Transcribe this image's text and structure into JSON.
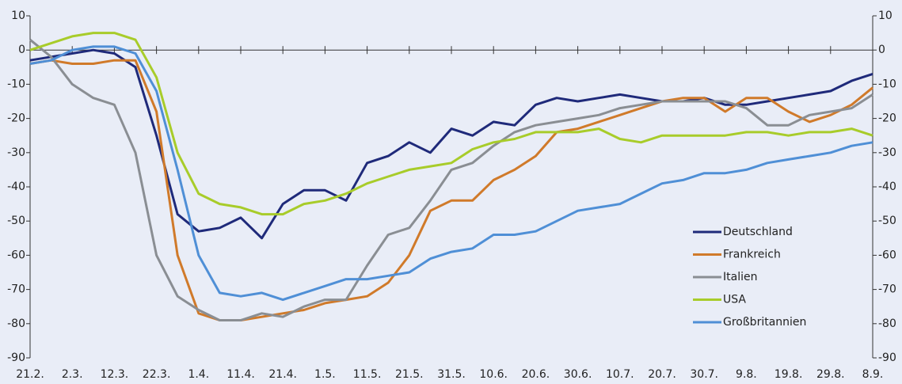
{
  "chart_data": {
    "type": "line",
    "categories": [
      "21.2.",
      null,
      "2.3.",
      null,
      "12.3.",
      null,
      "22.3.",
      null,
      "1.4.",
      null,
      "11.4.",
      null,
      "21.4.",
      null,
      "1.5.",
      null,
      "11.5.",
      null,
      "21.5.",
      null,
      "31.5.",
      null,
      "10.6.",
      null,
      "20.6.",
      null,
      "30.6.",
      null,
      "10.7.",
      null,
      "20.7.",
      null,
      "30.7.",
      null,
      "9.8.",
      null,
      "19.8.",
      null,
      "29.8.",
      null,
      "8.9."
    ],
    "ylim": [
      -90,
      10
    ],
    "yticks": [
      -90,
      -80,
      -70,
      -60,
      -50,
      -40,
      -30,
      -20,
      -10,
      0,
      10
    ],
    "y2lim": [
      -90,
      10
    ],
    "y2ticks": [
      -90,
      -80,
      -70,
      -60,
      -50,
      -40,
      -30,
      -20,
      -10,
      0,
      10
    ],
    "legend": "lower right",
    "series": [
      {
        "name": "Deutschland",
        "color": "#1f2a7a",
        "values": [
          -3,
          -2,
          -1,
          0,
          -1,
          -5,
          -25,
          -48,
          -53,
          -52,
          -49,
          -55,
          -45,
          -41,
          -41,
          -44,
          -33,
          -31,
          -27,
          -30,
          -23,
          -25,
          -21,
          -22,
          -16,
          -14,
          -15,
          -14,
          -13,
          -14,
          -15,
          -15,
          -14,
          -16,
          -16,
          -15,
          -14,
          -13,
          -12,
          -9,
          -7
        ]
      },
      {
        "name": "Frankreich",
        "color": "#d07a2a",
        "values": [
          -4,
          -3,
          -4,
          -4,
          -3,
          -3,
          -18,
          -60,
          -77,
          -79,
          -79,
          -78,
          -77,
          -76,
          -74,
          -73,
          -72,
          -68,
          -60,
          -47,
          -44,
          -44,
          -38,
          -35,
          -31,
          -24,
          -23,
          -21,
          -19,
          -17,
          -15,
          -14,
          -14,
          -18,
          -14,
          -14,
          -18,
          -21,
          -19,
          -16,
          -11
        ]
      },
      {
        "name": "Italien",
        "color": "#8a8e93",
        "values": [
          3,
          -2,
          -10,
          -14,
          -16,
          -30,
          -60,
          -72,
          -76,
          -79,
          -79,
          -77,
          -78,
          -75,
          -73,
          -73,
          -63,
          -54,
          -52,
          -44,
          -35,
          -33,
          -28,
          -24,
          -22,
          -21,
          -20,
          -19,
          -17,
          -16,
          -15,
          -15,
          -15,
          -15,
          -17,
          -22,
          -22,
          -19,
          -18,
          -17,
          -13
        ]
      },
      {
        "name": "USA",
        "color": "#a8cc2a",
        "values": [
          0,
          2,
          4,
          5,
          5,
          3,
          -8,
          -30,
          -42,
          -45,
          -46,
          -48,
          -48,
          -45,
          -44,
          -42,
          -39,
          -37,
          -35,
          -34,
          -33,
          -29,
          -27,
          -26,
          -24,
          -24,
          -24,
          -23,
          -26,
          -27,
          -25,
          -25,
          -25,
          -25,
          -24,
          -24,
          -25,
          -24,
          -24,
          -23,
          -25
        ]
      },
      {
        "name": "Großbritannien",
        "color": "#4f8fd6",
        "values": [
          -4,
          -3,
          0,
          1,
          1,
          -1,
          -12,
          -35,
          -60,
          -71,
          -72,
          -71,
          -73,
          -71,
          -69,
          -67,
          -67,
          -66,
          -65,
          -61,
          -59,
          -58,
          -54,
          -54,
          -53,
          -50,
          -47,
          -46,
          -45,
          -42,
          -39,
          -38,
          -36,
          -36,
          -35,
          -33,
          -32,
          -31,
          -30,
          -28,
          -27
        ]
      }
    ]
  }
}
